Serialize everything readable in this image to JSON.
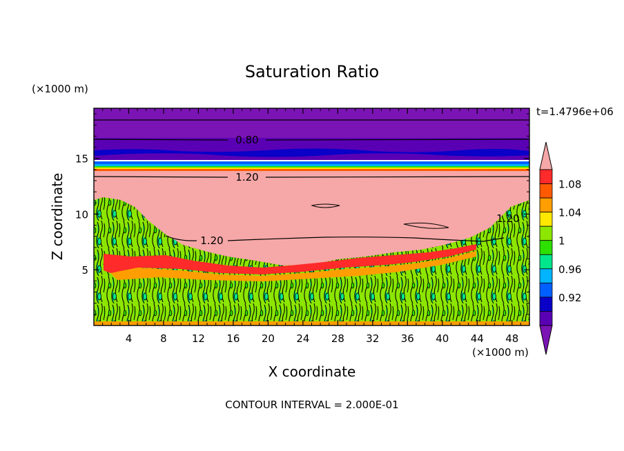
{
  "chart_data": {
    "type": "heatmap",
    "title": "Saturation Ratio",
    "xlabel": "X coordinate",
    "ylabel": "Z coordinate",
    "x_unit": "(×1000 m)",
    "y_unit": "(×1000 m)",
    "time_label": "t=1.4796e+06",
    "footer": "CONTOUR INTERVAL = 2.000E-01",
    "xlim": [
      0,
      50
    ],
    "ylim": [
      0,
      19.5
    ],
    "x_ticks": [
      "4",
      "8",
      "12",
      "16",
      "20",
      "24",
      "28",
      "32",
      "36",
      "40",
      "44",
      "48"
    ],
    "y_ticks": [
      "5",
      "10",
      "15"
    ],
    "colorbar": {
      "labels": [
        "1.08",
        "1.04",
        "1",
        "0.96",
        "0.92"
      ],
      "colors": [
        "#f6a7a7",
        "#ff2a2a",
        "#ff5a00",
        "#ff9e00",
        "#ffe800",
        "#8ce600",
        "#2ee000",
        "#00e68c",
        "#00b4ff",
        "#0060ff",
        "#0a00c8",
        "#5a00b4",
        "#7a14b4"
      ]
    },
    "contour_labels": [
      "0.80",
      "1.20",
      "1.20",
      "1.20"
    ]
  }
}
